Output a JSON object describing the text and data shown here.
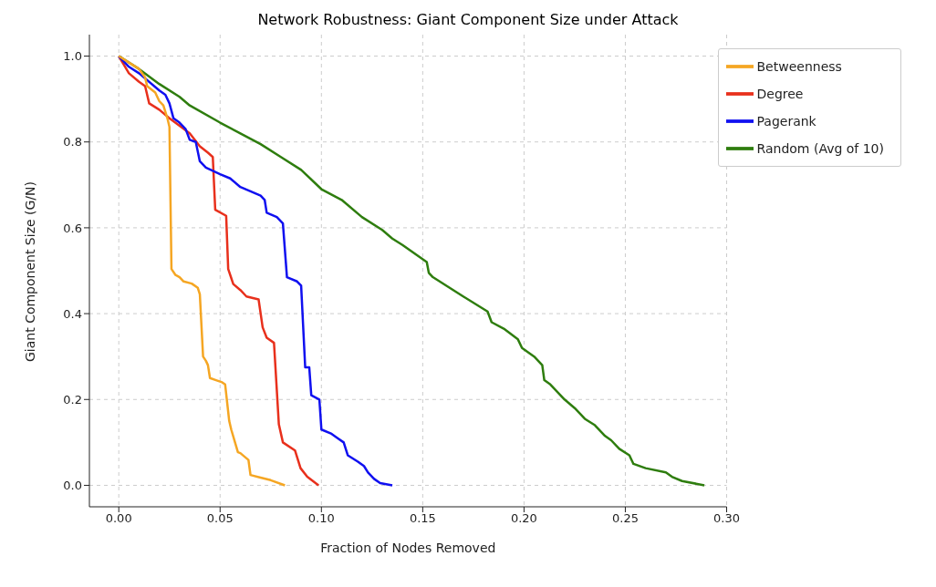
{
  "chart_data": {
    "type": "line",
    "title": "Network Robustness: Giant Component Size under Attack",
    "xlabel": "Fraction of Nodes Removed",
    "ylabel": "Giant Component Size (G/N)",
    "xlim": [
      -0.0145,
      0.3
    ],
    "ylim": [
      -0.05,
      1.05
    ],
    "xticks": [
      {
        "value": 0,
        "label": "0.00"
      },
      {
        "value": 0.05,
        "label": "0.05"
      },
      {
        "value": 0.1,
        "label": "0.10"
      },
      {
        "value": 0.15,
        "label": "0.15"
      },
      {
        "value": 0.2,
        "label": "0.20"
      },
      {
        "value": 0.25,
        "label": "0.25"
      },
      {
        "value": 0.3,
        "label": "0.30"
      }
    ],
    "yticks": [
      {
        "value": 0,
        "label": "0.0"
      },
      {
        "value": 0.2,
        "label": "0.2"
      },
      {
        "value": 0.4,
        "label": "0.4"
      },
      {
        "value": 0.6,
        "label": "0.6"
      },
      {
        "value": 0.8,
        "label": "0.8"
      },
      {
        "value": 1,
        "label": "1.0"
      }
    ],
    "grid": true,
    "legend": "top right",
    "line_style": "solid",
    "marker": "none",
    "series": [
      {
        "name": "Random (Avg of 10)",
        "color": "#2e7d0e",
        "x": [
          0,
          0.01,
          0.02,
          0.03,
          0.035,
          0.05,
          0.06,
          0.07,
          0.08,
          0.09,
          0.1,
          0.11,
          0.12,
          0.13,
          0.135,
          0.14,
          0.152,
          0.153,
          0.155,
          0.17,
          0.182,
          0.184,
          0.19,
          0.197,
          0.199,
          0.205,
          0.209,
          0.21,
          0.213,
          0.22,
          0.225,
          0.23,
          0.235,
          0.24,
          0.243,
          0.247,
          0.252,
          0.254,
          0.26,
          0.27,
          0.273,
          0.278,
          0.289
        ],
        "values": [
          1.0,
          0.97,
          0.935,
          0.905,
          0.885,
          0.845,
          0.82,
          0.795,
          0.765,
          0.735,
          0.69,
          0.665,
          0.625,
          0.595,
          0.575,
          0.56,
          0.52,
          0.495,
          0.485,
          0.44,
          0.405,
          0.38,
          0.365,
          0.34,
          0.32,
          0.3,
          0.28,
          0.245,
          0.235,
          0.2,
          0.18,
          0.155,
          0.14,
          0.115,
          0.105,
          0.085,
          0.07,
          0.05,
          0.04,
          0.03,
          0.02,
          0.01,
          0.0
        ]
      },
      {
        "name": "Degree",
        "color": "#e8301c",
        "x": [
          0,
          0.005,
          0.01,
          0.013,
          0.015,
          0.02,
          0.025,
          0.035,
          0.04,
          0.044,
          0.0464,
          0.0476,
          0.053,
          0.054,
          0.0565,
          0.06,
          0.063,
          0.069,
          0.071,
          0.073,
          0.0766,
          0.079,
          0.081,
          0.087,
          0.0897,
          0.093,
          0.0986
        ],
        "values": [
          1.0,
          0.96,
          0.94,
          0.93,
          0.89,
          0.875,
          0.855,
          0.82,
          0.79,
          0.775,
          0.765,
          0.642,
          0.628,
          0.504,
          0.469,
          0.455,
          0.44,
          0.433,
          0.368,
          0.344,
          0.332,
          0.142,
          0.1,
          0.081,
          0.04,
          0.02,
          0.0
        ]
      },
      {
        "name": "Pagerank",
        "color": "#1010f0",
        "x": [
          0,
          0.005,
          0.01,
          0.02,
          0.023,
          0.025,
          0.027,
          0.03,
          0.033,
          0.035,
          0.038,
          0.04,
          0.043,
          0.05,
          0.055,
          0.06,
          0.065,
          0.07,
          0.072,
          0.073,
          0.078,
          0.081,
          0.083,
          0.088,
          0.09,
          0.092,
          0.094,
          0.095,
          0.099,
          0.1,
          0.105,
          0.108,
          0.111,
          0.113,
          0.118,
          0.121,
          0.123,
          0.126,
          0.129,
          0.135
        ],
        "values": [
          1.0,
          0.975,
          0.96,
          0.92,
          0.91,
          0.89,
          0.855,
          0.845,
          0.83,
          0.805,
          0.8,
          0.755,
          0.74,
          0.725,
          0.715,
          0.695,
          0.685,
          0.675,
          0.665,
          0.635,
          0.625,
          0.61,
          0.485,
          0.475,
          0.465,
          0.275,
          0.275,
          0.21,
          0.2,
          0.13,
          0.12,
          0.11,
          0.1,
          0.07,
          0.055,
          0.045,
          0.03,
          0.015,
          0.005,
          0.0
        ]
      },
      {
        "name": "Betweenness",
        "color": "#f5a623",
        "x": [
          0,
          0.005,
          0.01,
          0.013,
          0.014,
          0.018,
          0.02,
          0.022,
          0.024,
          0.025,
          0.026,
          0.028,
          0.03,
          0.032,
          0.036,
          0.039,
          0.04,
          0.0416,
          0.043,
          0.044,
          0.045,
          0.048,
          0.051,
          0.0525,
          0.0545,
          0.0555,
          0.0588,
          0.06,
          0.064,
          0.065,
          0.07,
          0.075,
          0.082
        ],
        "values": [
          1.0,
          0.985,
          0.97,
          0.95,
          0.93,
          0.915,
          0.895,
          0.885,
          0.855,
          0.835,
          0.504,
          0.49,
          0.485,
          0.475,
          0.47,
          0.46,
          0.445,
          0.3,
          0.29,
          0.28,
          0.25,
          0.245,
          0.24,
          0.235,
          0.15,
          0.13,
          0.077,
          0.075,
          0.059,
          0.024,
          0.018,
          0.012,
          0.0
        ]
      }
    ]
  }
}
